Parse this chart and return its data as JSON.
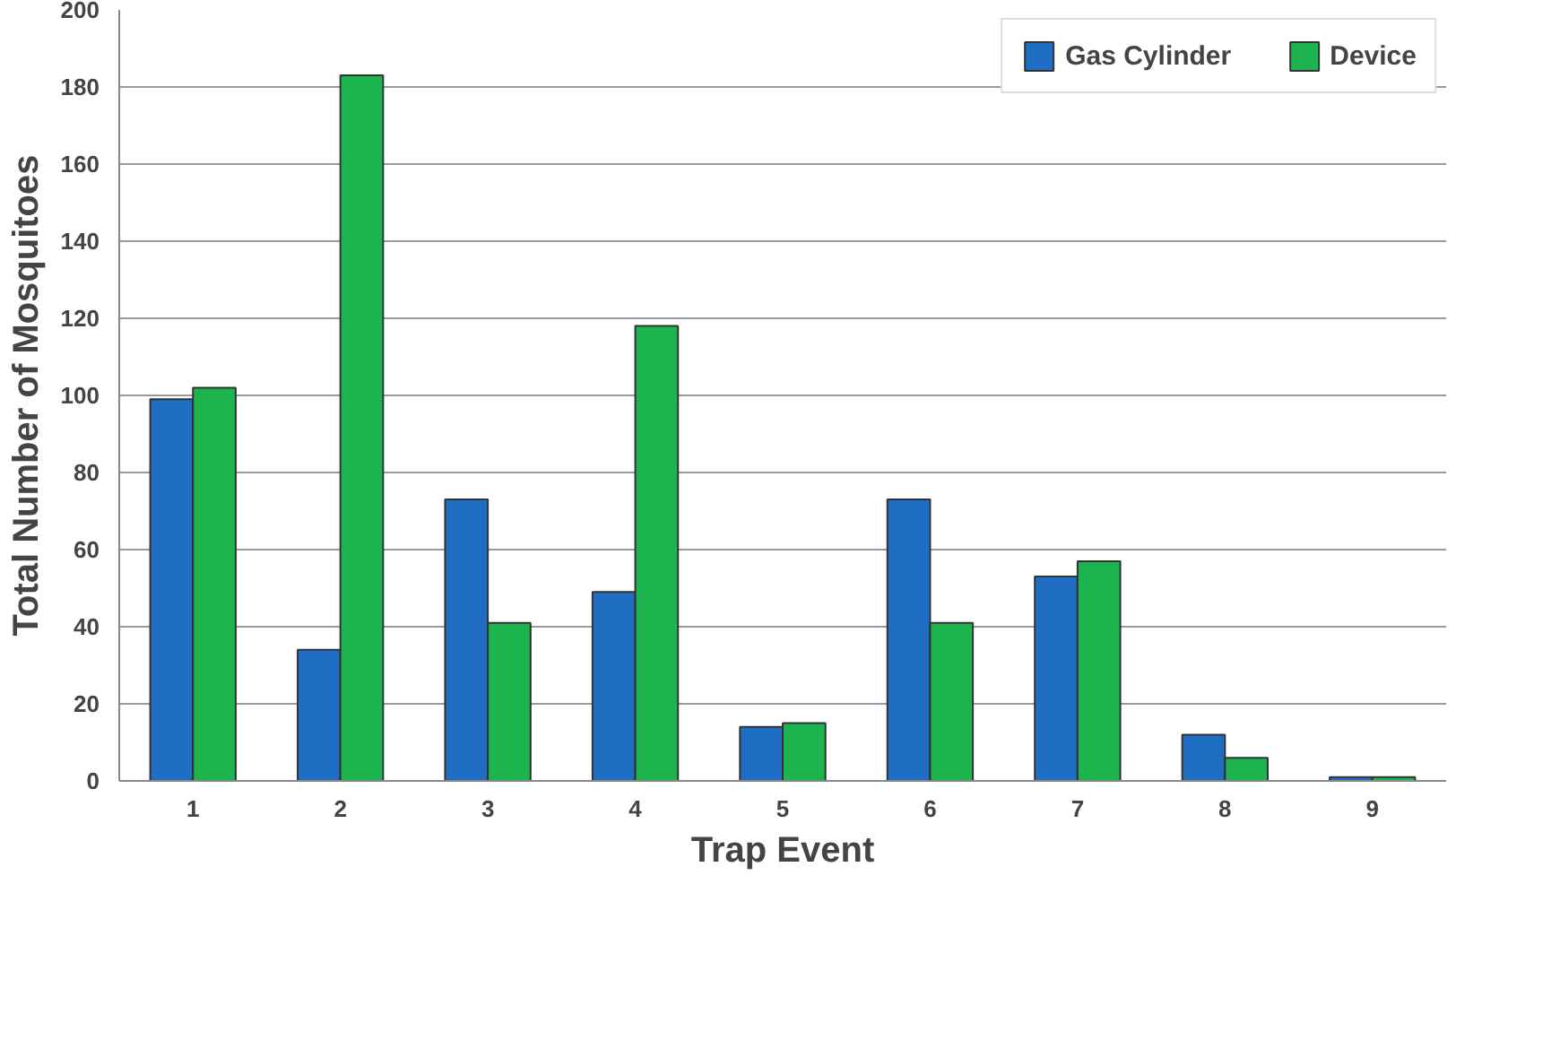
{
  "chart_data": {
    "type": "bar",
    "xlabel": "Trap Event",
    "ylabel": "Total Number of Mosquitoes",
    "categories": [
      "1",
      "2",
      "3",
      "4",
      "5",
      "6",
      "7",
      "8",
      "9"
    ],
    "series": [
      {
        "name": "Gas Cylinder",
        "color": "#1f6ec4",
        "values": [
          99,
          34,
          73,
          49,
          14,
          73,
          53,
          12,
          1
        ]
      },
      {
        "name": "Device",
        "color": "#1db34f",
        "values": [
          102,
          183,
          41,
          118,
          15,
          41,
          57,
          6,
          1
        ]
      }
    ],
    "ylim": [
      0,
      200
    ],
    "yticks": [
      0,
      20,
      40,
      60,
      80,
      100,
      120,
      140,
      160,
      180,
      200
    ],
    "grid": "y",
    "legend": "top right"
  }
}
